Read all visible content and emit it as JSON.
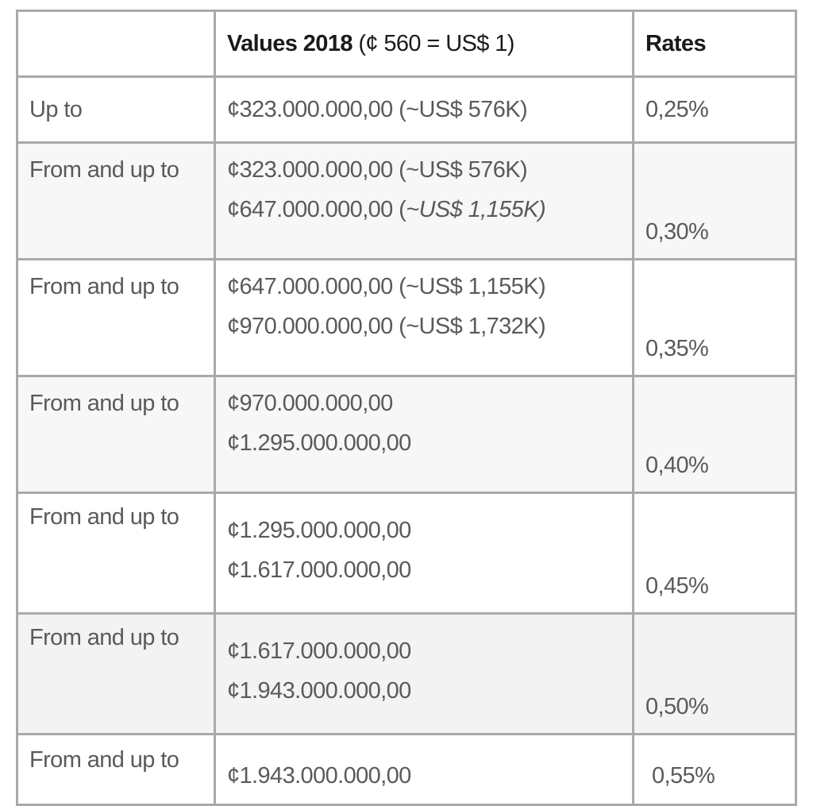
{
  "header": {
    "values_bold": "Values 2018",
    "values_rest": " (¢ 560 = US$ 1)",
    "rates": "Rates"
  },
  "rows": [
    {
      "label": "Up to",
      "line1": "¢323.000.000,00 (~US$ 576K)",
      "line2": "",
      "rate": "0,25%"
    },
    {
      "label": "From and up to",
      "line1": "¢323.000.000,00 (~US$ 576K)",
      "line2_prefix": "¢647.000.000,00 (",
      "line2_italic": "~US$ 1,155K)",
      "rate": "0,30%"
    },
    {
      "label": "From and up to",
      "line1": "¢647.000.000,00 (~US$ 1,155K)",
      "line2": "¢970.000.000,00 (~US$ 1,732K)",
      "rate": "0,35%"
    },
    {
      "label": "From and up to",
      "line1": "¢970.000.000,00",
      "line2": "¢1.295.000.000,00",
      "rate": "0,40%"
    },
    {
      "label": "From and up to",
      "line1": "¢1.295.000.000,00",
      "line2": "¢1.617.000.000,00",
      "rate": "0,45%"
    },
    {
      "label": "From and up to",
      "line1": "¢1.617.000.000,00",
      "line2": "¢1.943.000.000,00",
      "rate": "0,50%"
    },
    {
      "label": "From and up to",
      "line1": "¢1.943.000.000,00",
      "line2": "",
      "rate": "0,55%"
    }
  ]
}
